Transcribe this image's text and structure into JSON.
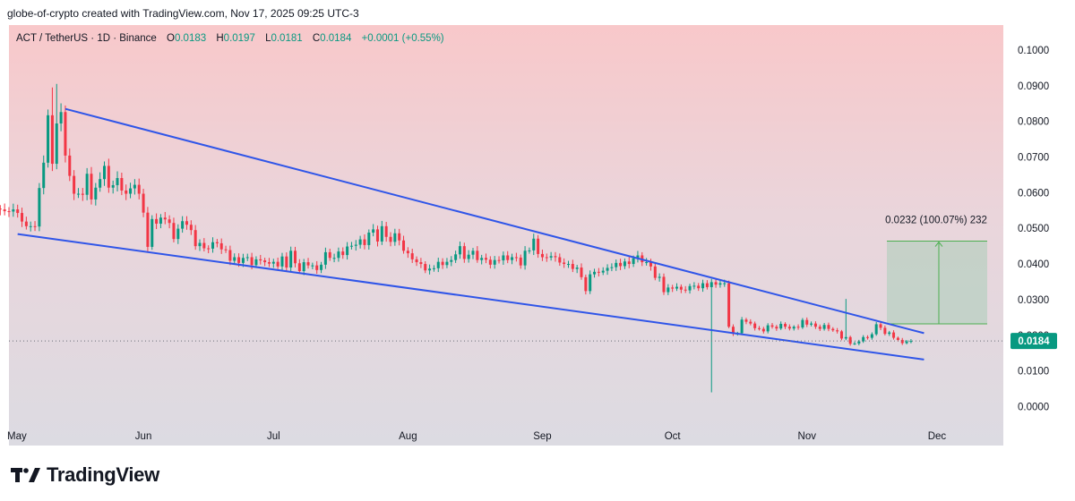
{
  "header": {
    "credit": "globe-of-crypto created with TradingView.com, Nov 17, 2025 09:25 UTC-3"
  },
  "legend": {
    "symbol": "ACT / TetherUS · 1D · Binance",
    "o_label": "O",
    "o_value": "0.0183",
    "h_label": "H",
    "h_value": "0.0197",
    "l_label": "L",
    "l_value": "0.0181",
    "c_label": "C",
    "c_value": "0.0184",
    "change": "+0.0001 (+0.55%)"
  },
  "brand": {
    "name": "TradingView"
  },
  "colors": {
    "up": "#089981",
    "down": "#f23645",
    "trendline": "#2f55e8",
    "measure_fill": "#a9cdb8",
    "measure_line": "#4caf50",
    "last_price_bg": "#089981"
  },
  "chart_data": {
    "type": "candlestick",
    "ylim": [
      0,
      0.1
    ],
    "y_ticks": [
      "0.1000",
      "0.0900",
      "0.0800",
      "0.0700",
      "0.0600",
      "0.0500",
      "0.0400",
      "0.0300",
      "0.0200",
      "0.0100",
      "0.0000"
    ],
    "x_ticks": [
      "May",
      "Jun",
      "Jul",
      "Aug",
      "Sep",
      "Oct",
      "Nov",
      "Dec"
    ],
    "last_price": "0.0184",
    "closes": [
      0.0553,
      0.0548,
      0.0547,
      0.0553,
      0.0543,
      0.0519,
      0.0506,
      0.0506,
      0.0505,
      0.0613,
      0.0684,
      0.0817,
      0.0681,
      0.0794,
      0.0826,
      0.0704,
      0.0647,
      0.0597,
      0.0597,
      0.0594,
      0.0653,
      0.0581,
      0.0614,
      0.0638,
      0.0675,
      0.0614,
      0.0621,
      0.0641,
      0.0606,
      0.0597,
      0.0612,
      0.0622,
      0.0597,
      0.0544,
      0.0448,
      0.0526,
      0.0513,
      0.053,
      0.0525,
      0.0515,
      0.047,
      0.0499,
      0.052,
      0.051,
      0.0495,
      0.045,
      0.0459,
      0.0444,
      0.0443,
      0.0461,
      0.0458,
      0.0441,
      0.0439,
      0.0409,
      0.0419,
      0.0403,
      0.0417,
      0.0419,
      0.0397,
      0.0413,
      0.041,
      0.0405,
      0.0401,
      0.0406,
      0.0393,
      0.0421,
      0.039,
      0.0437,
      0.0402,
      0.038,
      0.0405,
      0.0396,
      0.0396,
      0.0383,
      0.0398,
      0.0433,
      0.0417,
      0.0417,
      0.0435,
      0.0425,
      0.0449,
      0.0451,
      0.0454,
      0.0469,
      0.0453,
      0.0488,
      0.0497,
      0.0463,
      0.0506,
      0.0476,
      0.0462,
      0.0486,
      0.0466,
      0.0437,
      0.043,
      0.0413,
      0.0405,
      0.04,
      0.0382,
      0.0387,
      0.0388,
      0.0406,
      0.0397,
      0.0406,
      0.0411,
      0.0427,
      0.045,
      0.0414,
      0.0426,
      0.0437,
      0.0411,
      0.0417,
      0.0412,
      0.0398,
      0.0411,
      0.041,
      0.0424,
      0.0411,
      0.0419,
      0.0418,
      0.0396,
      0.0437,
      0.0438,
      0.0471,
      0.0428,
      0.0419,
      0.0418,
      0.0422,
      0.0419,
      0.0404,
      0.04,
      0.04,
      0.0386,
      0.039,
      0.0363,
      0.0324,
      0.0371,
      0.0378,
      0.0376,
      0.0381,
      0.0389,
      0.0391,
      0.0403,
      0.0394,
      0.0407,
      0.04,
      0.0416,
      0.0424,
      0.0405,
      0.0405,
      0.0393,
      0.0361,
      0.0364,
      0.0321,
      0.0334,
      0.0331,
      0.0336,
      0.0328,
      0.0326,
      0.0338,
      0.0339,
      0.0332,
      0.0346,
      0.0335,
      0.0349,
      0.0342,
      0.0346,
      0.0346,
      0.0224,
      0.0204,
      0.0206,
      0.0244,
      0.0238,
      0.0233,
      0.022,
      0.0218,
      0.0211,
      0.0228,
      0.0224,
      0.0219,
      0.0232,
      0.0224,
      0.0219,
      0.0224,
      0.0222,
      0.0243,
      0.023,
      0.0233,
      0.0224,
      0.0218,
      0.0229,
      0.0218,
      0.0214,
      0.0211,
      0.0191,
      0.0195,
      0.0176,
      0.0177,
      0.0183,
      0.0195,
      0.0193,
      0.0203,
      0.0231,
      0.0221,
      0.0204,
      0.0208,
      0.0193,
      0.0187,
      0.0178,
      0.0183,
      0.0184
    ],
    "trendlines": [
      {
        "start": [
          "May 14",
          0.0835
        ],
        "end": [
          "Nov 28",
          0.0206
        ]
      },
      {
        "start": [
          "May 3",
          0.0484
        ],
        "end": [
          "Nov 28",
          0.0132
        ]
      }
    ],
    "measurement": {
      "label": "0.0232 (100.07%) 232",
      "from": 0.0232,
      "to": 0.0464
    }
  }
}
